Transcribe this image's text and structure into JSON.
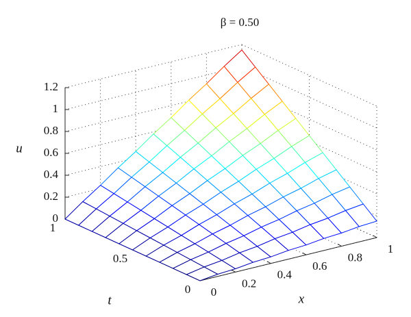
{
  "chart_data": {
    "type": "surface",
    "title": "β = 0.50",
    "xlabel": "x",
    "ylabel": "t",
    "zlabel": "u",
    "x": [
      0,
      0.1,
      0.2,
      0.3,
      0.4,
      0.5,
      0.6,
      0.7,
      0.8,
      0.9,
      1
    ],
    "y": [
      0,
      0.1,
      0.2,
      0.3,
      0.4,
      0.5,
      0.6,
      0.7,
      0.8,
      0.9,
      1
    ],
    "z": [
      [
        0,
        0.02,
        0.03,
        0.05,
        0.06,
        0.08,
        0.09,
        0.11,
        0.12,
        0.14,
        0.15
      ],
      [
        0,
        0.03,
        0.05,
        0.08,
        0.1,
        0.13,
        0.15,
        0.18,
        0.2,
        0.23,
        0.25
      ],
      [
        0,
        0.04,
        0.07,
        0.11,
        0.14,
        0.18,
        0.21,
        0.25,
        0.28,
        0.32,
        0.35
      ],
      [
        0,
        0.05,
        0.09,
        0.14,
        0.18,
        0.23,
        0.27,
        0.32,
        0.36,
        0.41,
        0.45
      ],
      [
        0,
        0.06,
        0.11,
        0.17,
        0.22,
        0.28,
        0.33,
        0.39,
        0.44,
        0.5,
        0.55
      ],
      [
        0,
        0.07,
        0.13,
        0.2,
        0.26,
        0.33,
        0.39,
        0.46,
        0.52,
        0.59,
        0.65
      ],
      [
        0,
        0.08,
        0.15,
        0.23,
        0.3,
        0.38,
        0.45,
        0.53,
        0.6,
        0.68,
        0.75
      ],
      [
        0,
        0.09,
        0.17,
        0.26,
        0.34,
        0.43,
        0.51,
        0.6,
        0.68,
        0.77,
        0.85
      ],
      [
        0,
        0.1,
        0.19,
        0.29,
        0.38,
        0.48,
        0.57,
        0.67,
        0.76,
        0.86,
        0.95
      ],
      [
        0,
        0.11,
        0.21,
        0.32,
        0.42,
        0.53,
        0.63,
        0.74,
        0.84,
        0.95,
        1.05
      ],
      [
        0,
        0.12,
        0.23,
        0.35,
        0.46,
        0.58,
        0.69,
        0.81,
        0.92,
        1.04,
        1.15
      ]
    ],
    "xlim": [
      0,
      1
    ],
    "ylim": [
      0,
      1
    ],
    "zlim": [
      0,
      1.2
    ],
    "xticks": [
      0,
      0.2,
      0.4,
      0.6,
      0.8,
      1
    ],
    "yticks": [
      0,
      0.5,
      1
    ],
    "zticks": [
      0,
      0.2,
      0.4,
      0.6,
      0.8,
      1,
      1.2
    ],
    "colormap": "jet",
    "grid": true
  }
}
